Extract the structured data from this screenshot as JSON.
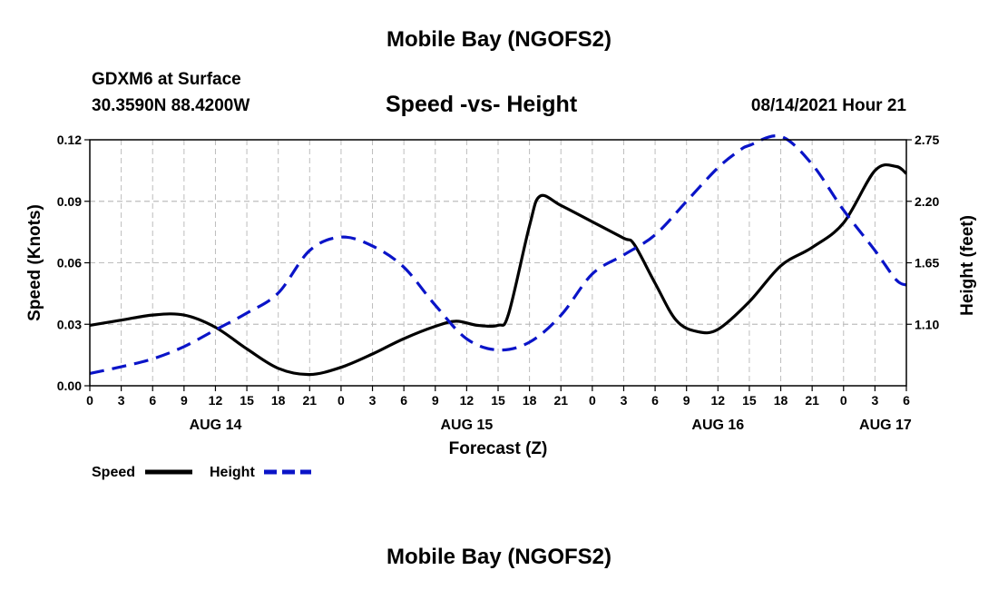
{
  "header": {
    "title": "Mobile Bay (NGOFS2)",
    "station": "GDXM6 at Surface",
    "coordinates": "30.3590N  88.4200W",
    "subtitle": "Speed -vs- Height",
    "datetime": "08/14/2021 Hour 21"
  },
  "footer": {
    "title": "Mobile Bay (NGOFS2)"
  },
  "chart_data": {
    "type": "line",
    "xlabel": "Forecast (Z)",
    "ylabel_left": "Speed (Knots)",
    "ylabel_right": "Height (feet)",
    "x_range_hours": [
      0,
      78
    ],
    "x_ticks": [
      "0",
      "3",
      "6",
      "9",
      "12",
      "15",
      "18",
      "21",
      "0",
      "3",
      "6",
      "9",
      "12",
      "15",
      "18",
      "21",
      "0",
      "3",
      "6",
      "9",
      "12",
      "15",
      "18",
      "21",
      "0",
      "3",
      "6"
    ],
    "date_labels": [
      {
        "label": "AUG 14",
        "hour": 12
      },
      {
        "label": "AUG 15",
        "hour": 36
      },
      {
        "label": "AUG 16",
        "hour": 60
      },
      {
        "label": "AUG 17",
        "hour": 76
      }
    ],
    "ylim_left": [
      0,
      0.12
    ],
    "yticks_left": [
      "0.00",
      "0.03",
      "0.06",
      "0.09",
      "0.12"
    ],
    "ylim_right": [
      0.55,
      2.75
    ],
    "yticks_right": [
      {
        "label": "1.10",
        "value": 1.1
      },
      {
        "label": "1.65",
        "value": 1.65
      },
      {
        "label": "2.20",
        "value": 2.2
      },
      {
        "label": "2.75",
        "value": 2.75
      }
    ],
    "grid": true,
    "series": [
      {
        "name": "Speed",
        "color": "#000000",
        "dash": "solid",
        "axis": "left",
        "x": [
          0,
          3,
          6,
          9,
          12,
          15,
          18,
          21,
          24,
          27,
          30,
          33,
          35,
          37,
          39,
          40,
          42,
          43,
          45,
          48,
          51,
          52,
          54,
          56,
          58,
          60,
          63,
          66,
          69,
          72,
          75,
          77,
          78
        ],
        "y": [
          0.0295,
          0.032,
          0.0345,
          0.0345,
          0.0285,
          0.018,
          0.0085,
          0.0055,
          0.009,
          0.0155,
          0.023,
          0.029,
          0.0315,
          0.0295,
          0.0295,
          0.035,
          0.078,
          0.0925,
          0.088,
          0.08,
          0.072,
          0.069,
          0.05,
          0.032,
          0.0265,
          0.0275,
          0.041,
          0.0585,
          0.0675,
          0.0795,
          0.105,
          0.107,
          0.1035
        ]
      },
      {
        "name": "Height",
        "color": "#0a14c8",
        "dash": "dashed",
        "axis": "right",
        "x": [
          0,
          3,
          6,
          9,
          12,
          15,
          18,
          21,
          24,
          27,
          30,
          33,
          36,
          39,
          42,
          45,
          48,
          51,
          54,
          57,
          60,
          62,
          63,
          66,
          69,
          72,
          75,
          77,
          78
        ],
        "y": [
          0.66,
          0.72,
          0.79,
          0.9,
          1.05,
          1.2,
          1.38,
          1.76,
          1.88,
          1.8,
          1.61,
          1.27,
          0.97,
          0.87,
          0.94,
          1.18,
          1.55,
          1.72,
          1.9,
          2.2,
          2.5,
          2.65,
          2.7,
          2.78,
          2.53,
          2.12,
          1.76,
          1.5,
          1.45
        ]
      }
    ],
    "legend": "bottom-left"
  }
}
